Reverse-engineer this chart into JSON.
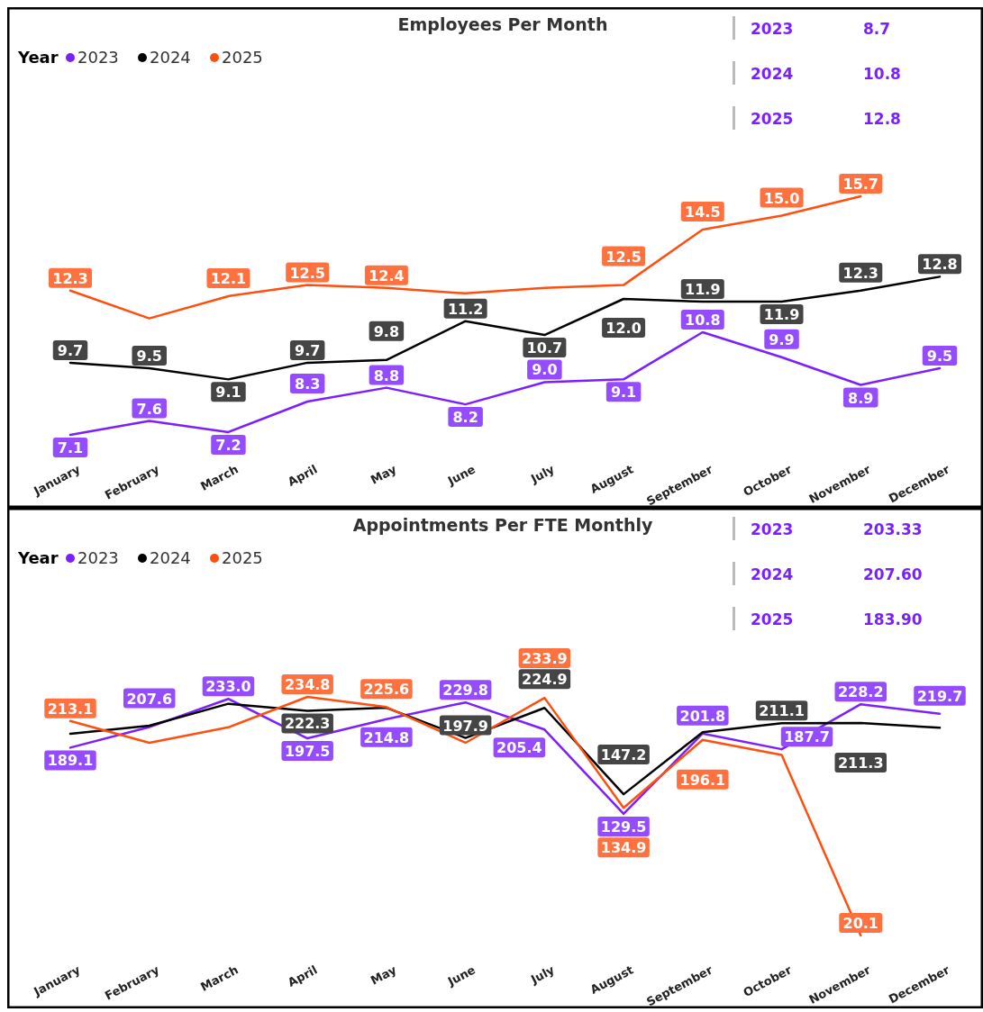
{
  "chart_data": [
    {
      "type": "line",
      "title": "Employees Per Month",
      "legend_title": "Year",
      "legend": "top left",
      "categories": [
        "January",
        "February",
        "March",
        "April",
        "May",
        "June",
        "July",
        "August",
        "September",
        "October",
        "November",
        "December"
      ],
      "series": [
        {
          "name": "2023",
          "color": "#7b1fff",
          "values": [
            7.1,
            7.6,
            7.2,
            8.3,
            8.8,
            8.2,
            9.0,
            9.1,
            10.8,
            9.9,
            8.9,
            9.5
          ],
          "value_labels": [
            "7.1",
            "7.6",
            "7.2",
            "8.3",
            "8.8",
            "8.2",
            "9.0",
            "9.1",
            "10.8",
            "9.9",
            "8.9",
            "9.5"
          ]
        },
        {
          "name": "2024",
          "color": "#000000",
          "values": [
            9.7,
            9.5,
            9.1,
            9.7,
            9.8,
            11.2,
            10.7,
            12.0,
            11.9,
            11.9,
            12.3,
            12.8
          ],
          "value_labels": [
            "9.7",
            "9.5",
            "9.1",
            "9.7",
            "9.8",
            "11.2",
            "10.7",
            "12.0",
            "11.9",
            "11.9",
            "12.3",
            "12.8"
          ]
        },
        {
          "name": "2025",
          "color": "#ff4f0f",
          "values": [
            12.3,
            11.3,
            12.1,
            12.5,
            12.4,
            12.2,
            12.4,
            12.5,
            14.5,
            15.0,
            15.7,
            null
          ],
          "value_labels": [
            "12.3",
            null,
            "12.1",
            "12.5",
            "12.4",
            null,
            null,
            "12.5",
            "14.5",
            "15.0",
            "15.7",
            null
          ]
        }
      ],
      "annotations": [
        "2023",
        "8.7",
        "2024",
        "10.8",
        "2025",
        "12.8"
      ]
    },
    {
      "type": "line",
      "title": "Appointments Per FTE Monthly",
      "legend_title": "Year",
      "legend": "top left",
      "categories": [
        "January",
        "February",
        "March",
        "April",
        "May",
        "June",
        "July",
        "August",
        "September",
        "October",
        "November",
        "December"
      ],
      "series": [
        {
          "name": "2023",
          "color": "#7b1fff",
          "values": [
            189.1,
            207.6,
            233.0,
            197.5,
            214.8,
            229.8,
            205.4,
            129.5,
            201.8,
            187.7,
            228.2,
            219.7
          ],
          "value_labels": [
            "189.1",
            "207.6",
            "233.0",
            "197.5",
            "214.8",
            "229.8",
            "205.4",
            "129.5",
            "201.8",
            "187.7",
            "228.2",
            "219.7"
          ]
        },
        {
          "name": "2024",
          "color": "#000000",
          "values": [
            201.5,
            208.9,
            228.6,
            222.3,
            225.0,
            197.9,
            224.9,
            147.2,
            203.0,
            211.1,
            211.3,
            207.0
          ],
          "value_labels": [
            null,
            null,
            null,
            "222.3",
            null,
            "197.9",
            "224.9",
            "147.2",
            null,
            "211.1",
            "211.3",
            null
          ]
        },
        {
          "name": "2025",
          "color": "#ff4f0f",
          "values": [
            213.1,
            193.5,
            207.4,
            234.8,
            225.6,
            193.5,
            233.9,
            134.9,
            196.1,
            182.5,
            20.1,
            null
          ],
          "value_labels": [
            "213.1",
            null,
            null,
            "234.8",
            "225.6",
            null,
            "233.9",
            "134.9",
            "196.1",
            null,
            "20.1",
            null
          ]
        }
      ],
      "annotations": [
        "2023",
        "203.33",
        "2024",
        "207.60",
        "2025",
        "183.90"
      ]
    }
  ]
}
